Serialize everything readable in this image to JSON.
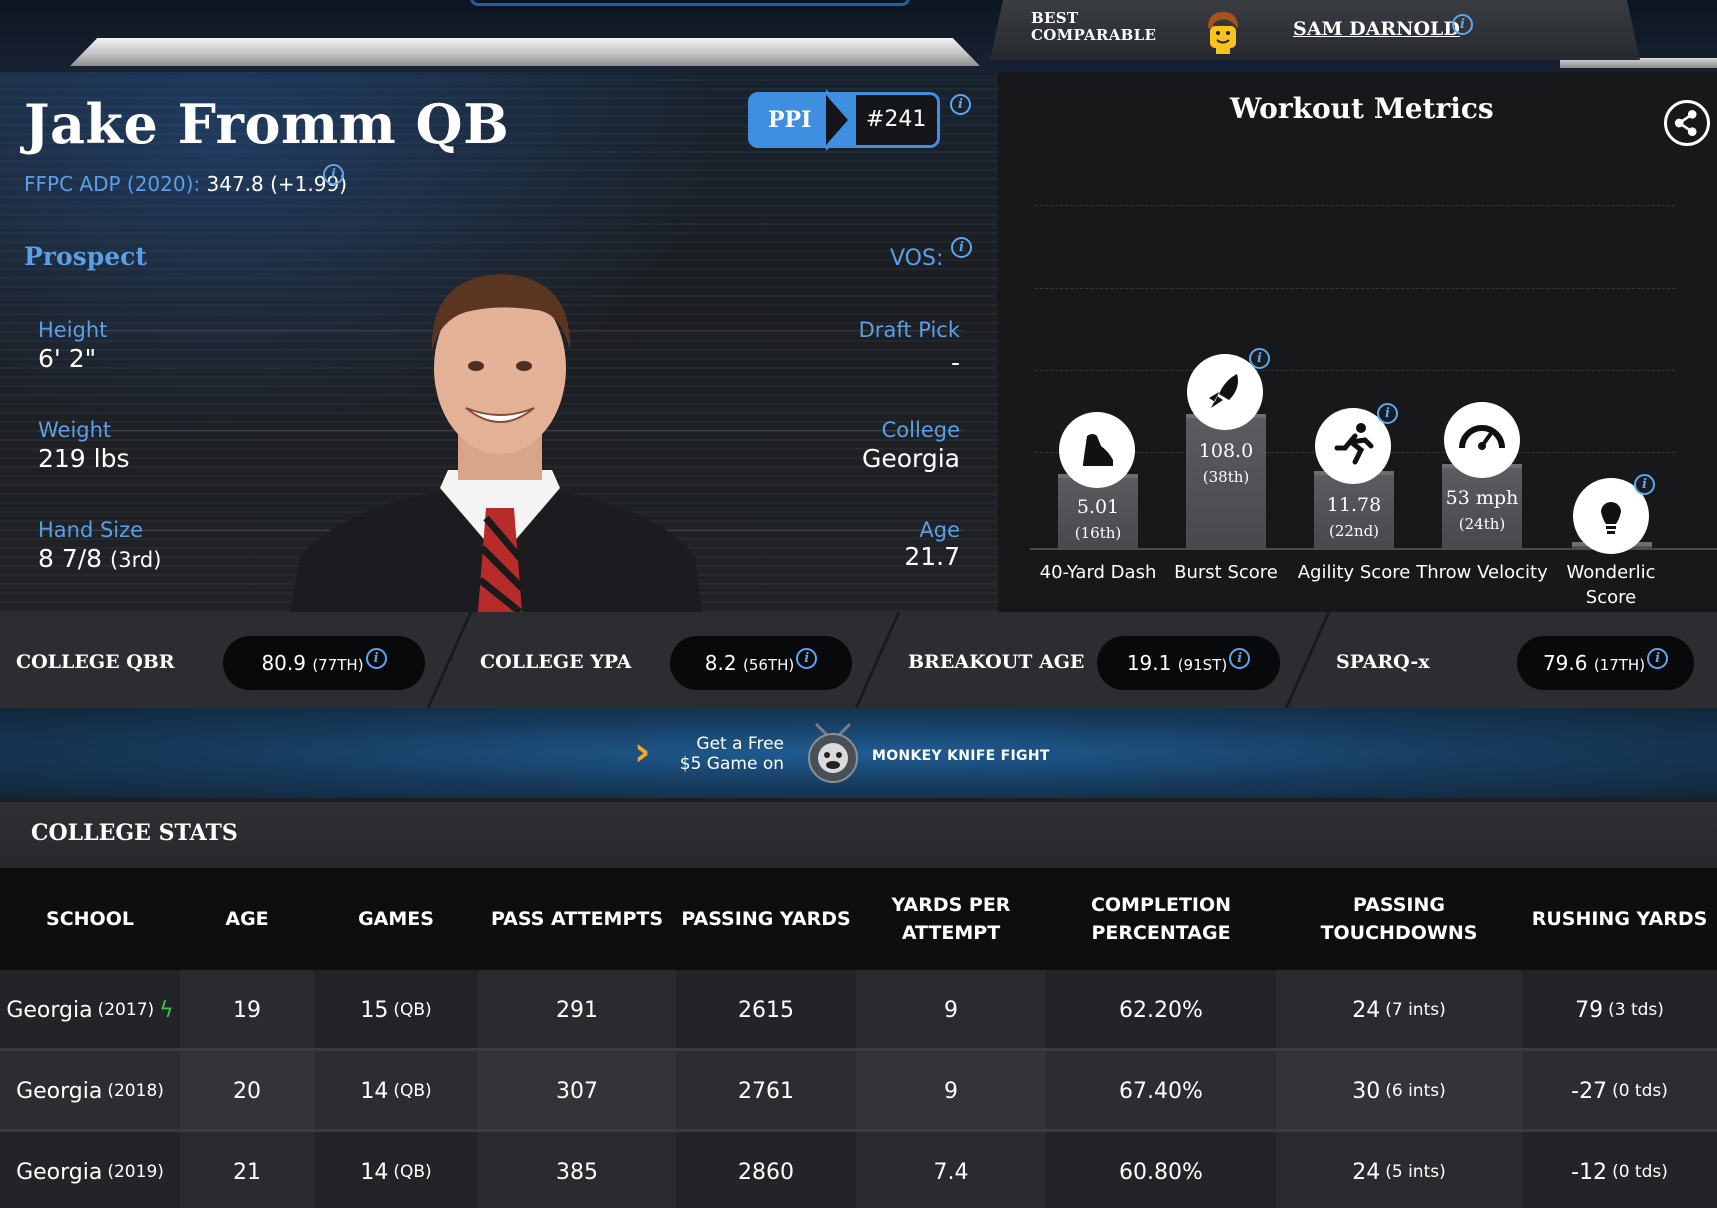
{
  "comparable": {
    "label": "BEST COMPARABLE",
    "name": "SAM DARNOLD"
  },
  "player": {
    "name": "Jake Fromm QB",
    "adp_label": "FFPC ADP (2020):",
    "adp_value": "347.8 (+1.99)",
    "ppi_label": "PPI",
    "ppi_rank": "#241",
    "section": "Prospect",
    "vos_label": "VOS:",
    "height_label": "Height",
    "height": "6' 2\"",
    "weight_label": "Weight",
    "weight": "219 lbs",
    "hand_label": "Hand Size",
    "hand_size": "8 7/8",
    "hand_rank": "(3rd)",
    "draft_label": "Draft Pick",
    "draft_pick": "-",
    "college_label": "College",
    "college": "Georgia",
    "age_label": "Age",
    "age": "21.7"
  },
  "workout": {
    "title": "Workout Metrics",
    "metrics": [
      {
        "label": "40-Yard Dash",
        "value": "5.01",
        "rank": "(16th)",
        "icon": "running-shoe-icon",
        "percentile": 16
      },
      {
        "label": "Burst Score",
        "value": "108.0",
        "rank": "(38th)",
        "icon": "rocket-icon",
        "percentile": 38
      },
      {
        "label": "Agility Score",
        "value": "11.78",
        "rank": "(22nd)",
        "icon": "sprinter-icon",
        "percentile": 22
      },
      {
        "label": "Throw Velocity",
        "value": "53 mph",
        "rank": "(24th)",
        "icon": "speedometer-icon",
        "percentile": 24
      },
      {
        "label": "Wonderlic Score",
        "value": "",
        "rank": "",
        "icon": "lightbulb-icon",
        "percentile": 0
      }
    ]
  },
  "strip": [
    {
      "label": "COLLEGE QBR",
      "value": "80.9",
      "rank": "(77TH)"
    },
    {
      "label": "COLLEGE YPA",
      "value": "8.2",
      "rank": "(56TH)"
    },
    {
      "label": "BREAKOUT AGE",
      "value": "19.1",
      "rank": "(91ST)"
    },
    {
      "label": "SPARQ-x",
      "value": "79.6",
      "rank": "(17TH)"
    }
  ],
  "promo": {
    "line1": "Get a Free",
    "line2": "$5 Game on",
    "brand": "MONKEY KNIFE FIGHT"
  },
  "college_stats": {
    "title": "COLLEGE STATS",
    "headers": [
      "SCHOOL",
      "AGE",
      "GAMES",
      "PASS ATTEMPTS",
      "PASSING YARDS",
      "YARDS PER ATTEMPT",
      "COMPLETION PERCENTAGE",
      "PASSING TOUCHDOWNS",
      "RUSHING YARDS"
    ],
    "rows": [
      {
        "school": "Georgia",
        "year": "(2017)",
        "breakout": true,
        "age": "19",
        "games": "15",
        "games_pos": "(QB)",
        "att": "291",
        "yds": "2615",
        "ypa": "9",
        "cmp": "62.20%",
        "td": "24",
        "ints": "(7 ints)",
        "rush": "79",
        "rush_td": "(3 tds)"
      },
      {
        "school": "Georgia",
        "year": "(2018)",
        "breakout": false,
        "age": "20",
        "games": "14",
        "games_pos": "(QB)",
        "att": "307",
        "yds": "2761",
        "ypa": "9",
        "cmp": "67.40%",
        "td": "30",
        "ints": "(6 ints)",
        "rush": "-27",
        "rush_td": "(0 tds)"
      },
      {
        "school": "Georgia",
        "year": "(2019)",
        "breakout": false,
        "age": "21",
        "games": "14",
        "games_pos": "(QB)",
        "att": "385",
        "yds": "2860",
        "ypa": "7.4",
        "cmp": "60.80%",
        "td": "24",
        "ints": "(5 ints)",
        "rush": "-12",
        "rush_td": "(0 tds)"
      }
    ]
  },
  "colors": {
    "accent_blue": "#3f8fe0",
    "label_blue": "#5b9fe6",
    "breakout_green": "#3ec24a",
    "promo_orange": "#f4a62a"
  }
}
